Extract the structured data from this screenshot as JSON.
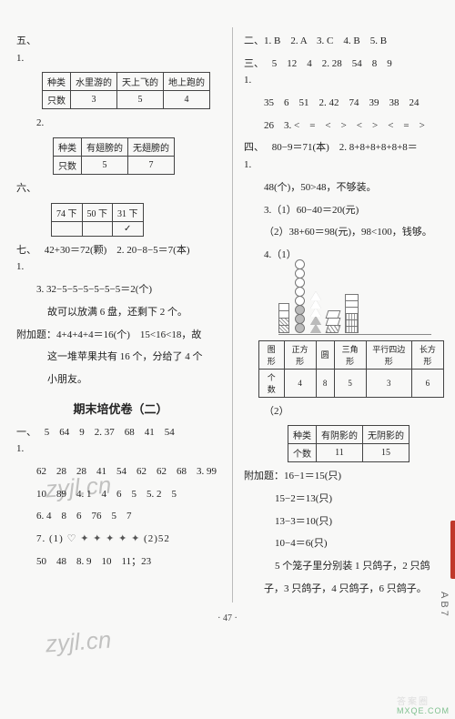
{
  "left": {
    "five": {
      "label": "五、1.",
      "t1": {
        "h": [
          "种类",
          "水里游的",
          "天上飞的",
          "地上跑的"
        ],
        "r": [
          "只数",
          "3",
          "5",
          "4"
        ]
      },
      "two_label": "2.",
      "t2": {
        "h": [
          "种类",
          "有翅膀的",
          "无翅膀的"
        ],
        "r": [
          "只数",
          "5",
          "7"
        ]
      }
    },
    "six": {
      "label": "六、",
      "t": {
        "h": [
          "74 下",
          "50 下",
          "31 下"
        ],
        "r": [
          "",
          "",
          "✓"
        ]
      }
    },
    "seven": {
      "label": "七、1.",
      "q1": "42+30＝72(颗)　2. 20−8−5＝7(本)",
      "q3": "3. 32−5−5−5−5−5−5＝2(个)",
      "q3b": "故可以放满 6 盘，还剩下 2 个。",
      "extra": "附加题：4+4+4+4＝16(个)　15<16<18，故",
      "extra2": "这一堆苹果共有 16 个，分给了 4 个",
      "extra3": "小朋友。"
    },
    "title2": "期末培优卷（二）",
    "one": {
      "label": "一、1.",
      "l1": "5　64　9　2. 37　68　41　54",
      "l2": "62　28　28　41　54　62　62　68　3. 99",
      "l3": "10　89　4. 1　4　6　5　5. 2　5",
      "l4": "6. 4　8　6　76　5　7",
      "l5a": "7. (1)",
      "l5b": "(2)52",
      "l6": "50　48　8. 9　10　11；23"
    }
  },
  "right": {
    "two": {
      "label": "二、1. B　2. A　3. C　4. B　5. B"
    },
    "three": {
      "label": "三、1.",
      "l1": "5　12　4　2. 28　54　8　9",
      "l2": "35　6　51　2. 42　74　39　38　24",
      "l3": "26　3. <　=　<　>　<　>　<　=　>"
    },
    "four": {
      "label": "四、1.",
      "l1": "80−9＝71(本)　2. 8+8+8+8+8+8＝",
      "l2": "48(个)，50>48，不够装。",
      "l3": "3.（1）60−40＝20(元)",
      "l4": "（2）38+60＝98(元)，98<100，钱够。",
      "l5": "4.（1）",
      "t1": {
        "h": [
          "图形",
          "正方形",
          "圆",
          "三角形",
          "平行四边形",
          "长方形"
        ],
        "r": [
          "个数",
          "4",
          "8",
          "5",
          "3",
          "6"
        ]
      },
      "t2label": "（2）",
      "t2": {
        "h": [
          "种类",
          "有阴影的",
          "无阴影的"
        ],
        "r": [
          "个数",
          "11",
          "15"
        ]
      }
    },
    "extra": {
      "label": "附加题：16−1＝15(只)",
      "l2": "15−2＝13(只)",
      "l3": "13−3＝10(只)",
      "l4": "10−4＝6(只)",
      "l5": "5 个笼子里分别装 1 只鸽子，2 只鸽",
      "l6": "子，3 只鸽子，4 只鸽子，6 只鸽子。"
    }
  },
  "chart": {
    "columns": [
      {
        "type": "square",
        "total": 4,
        "shaded": 2
      },
      {
        "type": "circle",
        "total": 8,
        "shaded": 3
      },
      {
        "type": "triangle",
        "total": 5,
        "shaded": 2
      },
      {
        "type": "para",
        "total": 3,
        "shaded": 1
      },
      {
        "type": "rect",
        "total": 6,
        "shaded": 3
      }
    ]
  },
  "pagenum": "· 47 ·",
  "ab7": "AB7",
  "watermark": "zyjl.cn",
  "logo": {
    "cn": "答案圈",
    "mxe": "MXQE.COM"
  }
}
